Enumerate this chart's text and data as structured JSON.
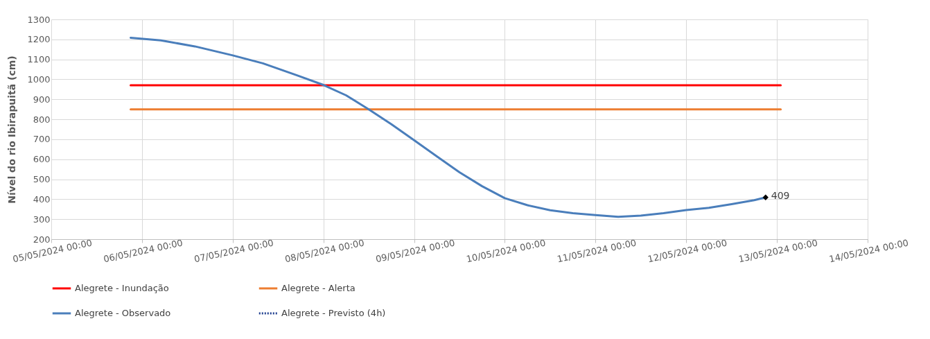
{
  "chart_data": {
    "type": "line",
    "ylabel": "Nível do rio Ibirapuitã (cm)",
    "xlim": [
      "2024-05-05T00:00",
      "2024-05-14T00:00"
    ],
    "xticks": [
      {
        "value": "2024-05-05T00:00",
        "label": "05/05/2024 00:00"
      },
      {
        "value": "2024-05-06T00:00",
        "label": "06/05/2024 00:00"
      },
      {
        "value": "2024-05-07T00:00",
        "label": "07/05/2024 00:00"
      },
      {
        "value": "2024-05-08T00:00",
        "label": "08/05/2024 00:00"
      },
      {
        "value": "2024-05-09T00:00",
        "label": "09/05/2024 00:00"
      },
      {
        "value": "2024-05-10T00:00",
        "label": "10/05/2024 00:00"
      },
      {
        "value": "2024-05-11T00:00",
        "label": "11/05/2024 00:00"
      },
      {
        "value": "2024-05-12T00:00",
        "label": "12/05/2024 00:00"
      },
      {
        "value": "2024-05-13T00:00",
        "label": "13/05/2024 00:00"
      },
      {
        "value": "2024-05-14T00:00",
        "label": "14/05/2024 00:00"
      }
    ],
    "ylim": [
      200,
      1300
    ],
    "yticks": [
      200,
      300,
      400,
      500,
      600,
      700,
      800,
      900,
      1000,
      1100,
      1200,
      1300
    ],
    "grid": true,
    "legend": "bottom",
    "marker": "none",
    "series": [
      {
        "name": "Alegrete - Inundação",
        "color": "#ff0000",
        "line_style": "solid",
        "x": [
          "2024-05-05T21:00",
          "2024-05-13T01:00"
        ],
        "values": [
          970,
          970
        ]
      },
      {
        "name": "Alegrete - Alerta",
        "color": "#ed7d31",
        "line_style": "solid",
        "x": [
          "2024-05-05T21:00",
          "2024-05-13T01:00"
        ],
        "values": [
          850,
          850
        ]
      },
      {
        "name": "Alegrete - Observado",
        "color": "#4a7ebb",
        "line_style": "solid",
        "x": [
          "2024-05-05T21:00",
          "2024-05-06T05:00",
          "2024-05-06T14:00",
          "2024-05-07T00:00",
          "2024-05-07T08:00",
          "2024-05-07T17:00",
          "2024-05-08T00:00",
          "2024-05-08T06:00",
          "2024-05-08T12:00",
          "2024-05-08T18:00",
          "2024-05-09T00:00",
          "2024-05-09T06:00",
          "2024-05-09T12:00",
          "2024-05-09T18:00",
          "2024-05-10T00:00",
          "2024-05-10T06:00",
          "2024-05-10T12:00",
          "2024-05-10T18:00",
          "2024-05-11T00:00",
          "2024-05-11T06:00",
          "2024-05-11T12:00",
          "2024-05-11T18:00",
          "2024-05-12T00:00",
          "2024-05-12T06:00",
          "2024-05-12T12:00",
          "2024-05-12T18:00",
          "2024-05-12T21:00"
        ],
        "values": [
          1208,
          1195,
          1165,
          1120,
          1080,
          1020,
          972,
          920,
          850,
          775,
          695,
          615,
          535,
          465,
          405,
          370,
          345,
          330,
          321,
          312,
          318,
          330,
          346,
          357,
          375,
          395,
          409
        ]
      },
      {
        "name": "Alegrete - Previsto (4h)",
        "color": "#1f3f8f",
        "line_style": "dotted"
      },
      {
        "type": "scatter",
        "color": "#000000",
        "marker": "diamond",
        "x": [
          "2024-05-12T21:00"
        ],
        "values": [
          409
        ],
        "value_labels": [
          "409"
        ]
      }
    ]
  }
}
